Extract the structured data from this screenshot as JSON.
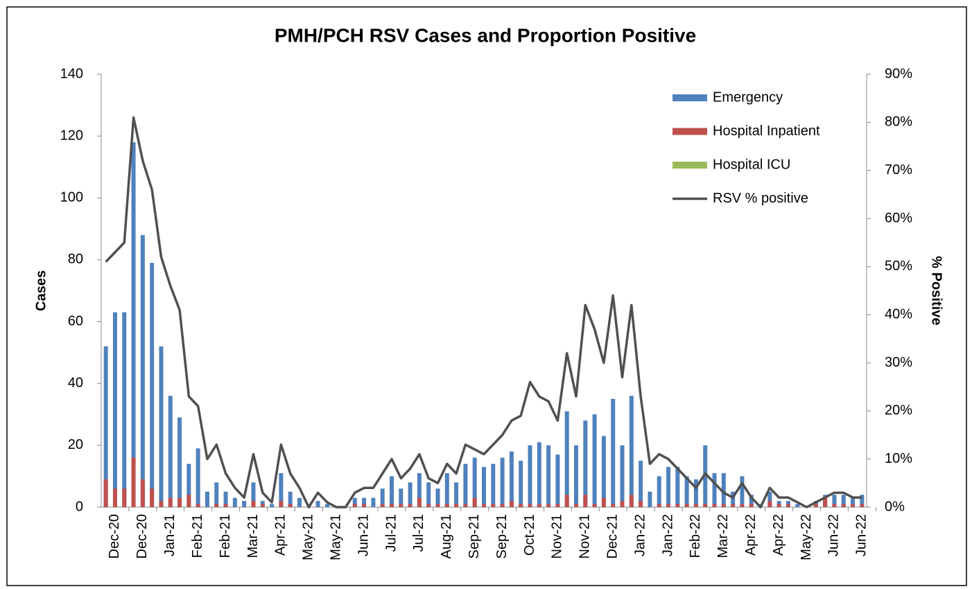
{
  "chart_data": {
    "type": "bar",
    "title": "PMH/PCH  RSV Cases and Proportion Positive",
    "y_label": "Cases",
    "y2_label": "% Positive",
    "categories": [
      null,
      "Dec-20",
      null,
      null,
      "Dec-20",
      null,
      null,
      "Jan-21",
      null,
      null,
      "Feb-21",
      null,
      null,
      "Feb-21",
      null,
      null,
      "Mar-21",
      null,
      null,
      "Apr-21",
      null,
      null,
      "May-21",
      null,
      null,
      "May-21",
      null,
      null,
      "Jun-21",
      null,
      null,
      "Jul-21",
      null,
      null,
      "Jul-21",
      null,
      null,
      "Aug-21",
      null,
      null,
      "Sep-21",
      null,
      null,
      "Sep-21",
      null,
      null,
      "Oct-21",
      null,
      null,
      "Nov-21",
      null,
      null,
      "Nov-21",
      null,
      null,
      "Dec-21",
      null,
      null,
      "Jan-22",
      null,
      null,
      "Jan-22",
      null,
      null,
      "Feb-22",
      null,
      null,
      "Mar-22",
      null,
      null,
      "Apr-22",
      null,
      null,
      "Apr-22",
      null,
      null,
      "May-22",
      null,
      null,
      "Jun-22",
      null,
      null,
      "Jun-22"
    ],
    "series": [
      {
        "name": "Emergency",
        "color": "#4f81bd",
        "values": [
          52,
          63,
          63,
          118,
          88,
          79,
          52,
          36,
          29,
          14,
          19,
          5,
          8,
          5,
          3,
          2,
          8,
          2,
          1,
          11,
          5,
          3,
          0,
          2,
          1,
          0,
          0,
          3,
          3,
          3,
          6,
          10,
          6,
          8,
          11,
          8,
          6,
          11,
          8,
          14,
          16,
          13,
          14,
          16,
          18,
          15,
          20,
          21,
          20,
          17,
          31,
          20,
          28,
          30,
          23,
          35,
          20,
          36,
          15,
          5,
          10,
          13,
          13,
          10,
          9,
          20,
          11,
          11,
          5,
          10,
          4,
          1,
          5,
          2,
          2,
          1,
          0,
          2,
          4,
          4,
          4,
          3,
          4
        ]
      },
      {
        "name": "Hospital Inpatient",
        "color": "#c0504d",
        "values": [
          9,
          6,
          6,
          16,
          9,
          6,
          2,
          3,
          3,
          4,
          1,
          0,
          1,
          1,
          0,
          0,
          2,
          1,
          0,
          2,
          1,
          0,
          0,
          0,
          0,
          0,
          0,
          1,
          1,
          0,
          1,
          1,
          1,
          1,
          3,
          1,
          1,
          1,
          1,
          1,
          3,
          1,
          1,
          1,
          2,
          1,
          1,
          1,
          1,
          1,
          4,
          1,
          4,
          1,
          3,
          1,
          2,
          4,
          2,
          0,
          1,
          1,
          1,
          1,
          1,
          1,
          1,
          1,
          1,
          1,
          1,
          0,
          2,
          1,
          1,
          0,
          0,
          1,
          3,
          1,
          1,
          1,
          1
        ]
      },
      {
        "name": "Hospital ICU",
        "color": "#9bbb59",
        "values": [
          0,
          0,
          0,
          0,
          0,
          0,
          0,
          0,
          0,
          0,
          0,
          0,
          0,
          0,
          0,
          0,
          0,
          0,
          0,
          0,
          0,
          0,
          0,
          0,
          0,
          0,
          0,
          0,
          0,
          0,
          0,
          0,
          0,
          0,
          0,
          0,
          0,
          0,
          0,
          0,
          0,
          0,
          0,
          0,
          0,
          0,
          0,
          0,
          0,
          0,
          0,
          0,
          0,
          0,
          0,
          0,
          0,
          0,
          0,
          0,
          0,
          0,
          0,
          0,
          0,
          0,
          0,
          0,
          0,
          0,
          0,
          0,
          0,
          0,
          0,
          0,
          0,
          0,
          0,
          0,
          0,
          0,
          0
        ]
      },
      {
        "name": "RSV % positive",
        "color": "#505050",
        "type": "line",
        "axis": "y2",
        "values": [
          51,
          53,
          55,
          81,
          72,
          66,
          52,
          46,
          41,
          23,
          21,
          10,
          13,
          7,
          4,
          2,
          11,
          3,
          1,
          13,
          7,
          4,
          0,
          3,
          1,
          0,
          0,
          3,
          4,
          4,
          7,
          10,
          6,
          8,
          11,
          6,
          5,
          9,
          7,
          13,
          12,
          11,
          13,
          15,
          18,
          19,
          26,
          23,
          22,
          18,
          32,
          23,
          42,
          37,
          30,
          44,
          27,
          42,
          23,
          9,
          11,
          10,
          8,
          6,
          4,
          7,
          5,
          3,
          2,
          5,
          2,
          0,
          4,
          2,
          2,
          1,
          0,
          1,
          2,
          3,
          3,
          2,
          2
        ]
      }
    ],
    "ylim": [
      0,
      140
    ],
    "yticks": [
      0,
      20,
      40,
      60,
      80,
      100,
      120,
      140
    ],
    "y2lim": [
      0,
      90
    ],
    "y2ticks": [
      {
        "value": 0,
        "label": "0%"
      },
      {
        "value": 10,
        "label": "10%"
      },
      {
        "value": 20,
        "label": "20%"
      },
      {
        "value": 30,
        "label": "30%"
      },
      {
        "value": 40,
        "label": "40%"
      },
      {
        "value": 50,
        "label": "50%"
      },
      {
        "value": 60,
        "label": "60%"
      },
      {
        "value": 70,
        "label": "70%"
      },
      {
        "value": 80,
        "label": "80%"
      },
      {
        "value": 90,
        "label": "90%"
      }
    ],
    "legend": "top-right"
  }
}
